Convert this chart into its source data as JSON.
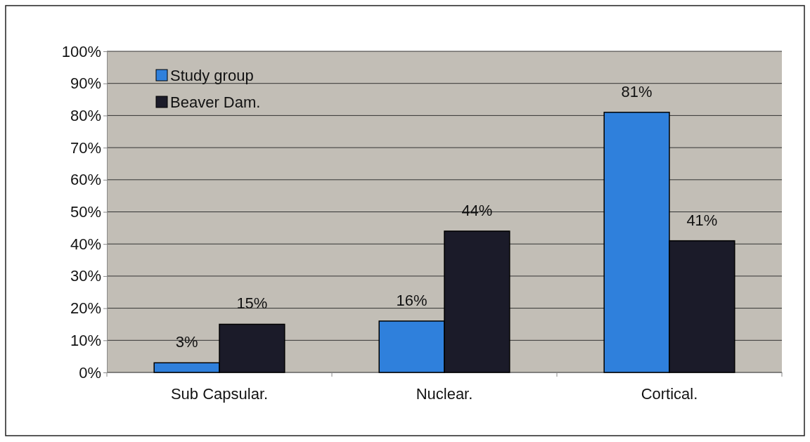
{
  "chart_data": {
    "type": "bar",
    "categories": [
      "Sub Capsular.",
      "Nuclear.",
      "Cortical."
    ],
    "series": [
      {
        "name": "Study group",
        "color": "#2f80dc",
        "values": [
          3,
          16,
          81
        ]
      },
      {
        "name": "Beaver Dam.",
        "color": "#1b1b29",
        "values": [
          15,
          44,
          41
        ]
      }
    ],
    "ylim": [
      0,
      100
    ],
    "yticks": [
      {
        "value": 0,
        "label": "0%"
      },
      {
        "value": 10,
        "label": "10%"
      },
      {
        "value": 20,
        "label": "20%"
      },
      {
        "value": 30,
        "label": "30%"
      },
      {
        "value": 40,
        "label": "40%"
      },
      {
        "value": 50,
        "label": "50%"
      },
      {
        "value": 60,
        "label": "60%"
      },
      {
        "value": 70,
        "label": "70%"
      },
      {
        "value": 80,
        "label": "80%"
      },
      {
        "value": 90,
        "label": "90%"
      },
      {
        "value": 100,
        "label": "100%"
      }
    ],
    "value_labels": [
      [
        "3%",
        "16%",
        "81%"
      ],
      [
        "15%",
        "44%",
        "41%"
      ]
    ],
    "grid": "y",
    "legend": "top left"
  }
}
